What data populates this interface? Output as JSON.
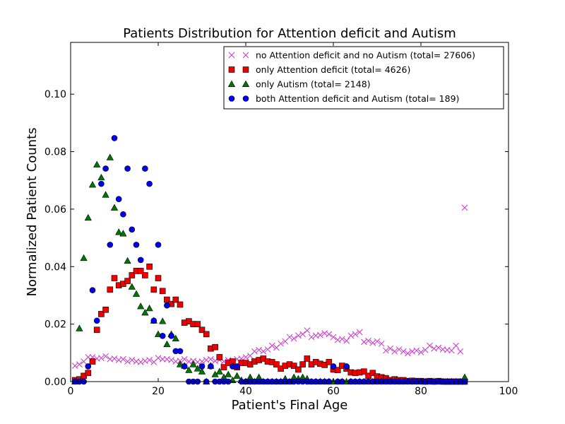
{
  "chart_data": {
    "type": "scatter",
    "title": "Patients Distribution for Attention deficit and Autism",
    "xlabel": "Patient's Final Age",
    "ylabel": "Normalized Patient Counts",
    "xlim": [
      0,
      100
    ],
    "ylim": [
      0,
      0.118
    ],
    "xticks": [
      "0",
      "20",
      "40",
      "60",
      "80",
      "100"
    ],
    "yticks": [
      "0.00",
      "0.02",
      "0.04",
      "0.06",
      "0.08",
      "0.10"
    ],
    "grid": false,
    "legend_position": "top-right",
    "series": [
      {
        "name": "no Attention deficit and no Autism (total= 27606)",
        "marker": "x",
        "color": "#cc33cc",
        "x": [
          1,
          2,
          3,
          4,
          5,
          6,
          7,
          8,
          9,
          10,
          11,
          12,
          13,
          14,
          15,
          16,
          17,
          18,
          19,
          20,
          21,
          22,
          23,
          24,
          25,
          26,
          27,
          28,
          29,
          30,
          31,
          32,
          33,
          34,
          35,
          36,
          37,
          38,
          39,
          40,
          41,
          42,
          43,
          44,
          45,
          46,
          47,
          48,
          49,
          50,
          51,
          52,
          53,
          54,
          55,
          56,
          57,
          58,
          59,
          60,
          61,
          62,
          63,
          64,
          65,
          66,
          67,
          68,
          69,
          70,
          71,
          72,
          73,
          74,
          75,
          76,
          77,
          78,
          79,
          80,
          81,
          82,
          83,
          84,
          85,
          86,
          87,
          88,
          89,
          90
        ],
        "y": [
          0.0055,
          0.006,
          0.007,
          0.0085,
          0.0085,
          0.008,
          0.0082,
          0.0088,
          0.0078,
          0.008,
          0.0075,
          0.0078,
          0.007,
          0.0075,
          0.007,
          0.0068,
          0.0072,
          0.0075,
          0.0068,
          0.0082,
          0.0078,
          0.0078,
          0.0075,
          0.007,
          0.0072,
          0.0078,
          0.007,
          0.0072,
          0.0068,
          0.007,
          0.0075,
          0.0078,
          0.0072,
          0.0075,
          0.007,
          0.0075,
          0.0072,
          0.0078,
          0.008,
          0.0085,
          0.009,
          0.0105,
          0.011,
          0.0105,
          0.0112,
          0.0125,
          0.0118,
          0.0132,
          0.014,
          0.0155,
          0.015,
          0.016,
          0.0165,
          0.0178,
          0.0155,
          0.016,
          0.0162,
          0.0168,
          0.0165,
          0.0155,
          0.0145,
          0.0148,
          0.0142,
          0.016,
          0.0165,
          0.0172,
          0.0138,
          0.0142,
          0.0135,
          0.014,
          0.0132,
          0.0108,
          0.0115,
          0.0105,
          0.0112,
          0.0105,
          0.0098,
          0.0105,
          0.0108,
          0.0102,
          0.011,
          0.0125,
          0.0115,
          0.0118,
          0.0112,
          0.011,
          0.0108,
          0.0125,
          0.0105,
          0.0605
        ]
      },
      {
        "name": "only Attention deficit (total= 4626)",
        "marker": "s",
        "color": "#ee0000",
        "x": [
          1,
          2,
          3,
          4,
          5,
          6,
          7,
          8,
          9,
          10,
          11,
          12,
          13,
          14,
          15,
          16,
          17,
          18,
          19,
          20,
          21,
          22,
          23,
          24,
          25,
          26,
          27,
          28,
          29,
          30,
          31,
          32,
          33,
          34,
          35,
          36,
          37,
          38,
          39,
          40,
          41,
          42,
          43,
          44,
          45,
          46,
          47,
          48,
          49,
          50,
          51,
          52,
          53,
          54,
          55,
          56,
          57,
          58,
          59,
          60,
          61,
          62,
          63,
          64,
          65,
          66,
          67,
          68,
          69,
          70,
          71,
          72,
          73,
          74,
          75,
          76,
          77,
          78,
          79,
          80,
          81,
          82,
          83,
          84,
          85,
          86,
          87,
          88,
          89,
          90
        ],
        "y": [
          0.0005,
          0.0008,
          0.002,
          0.003,
          0.007,
          0.018,
          0.0235,
          0.025,
          0.032,
          0.036,
          0.0335,
          0.034,
          0.035,
          0.037,
          0.0385,
          0.0385,
          0.037,
          0.04,
          0.032,
          0.036,
          0.0315,
          0.0285,
          0.027,
          0.0285,
          0.0268,
          0.0205,
          0.021,
          0.02,
          0.02,
          0.018,
          0.0165,
          0.0115,
          0.012,
          0.0085,
          0.005,
          0.0065,
          0.007,
          0.005,
          0.0065,
          0.0065,
          0.006,
          0.007,
          0.0075,
          0.008,
          0.007,
          0.0068,
          0.006,
          0.0045,
          0.0055,
          0.006,
          0.0055,
          0.0042,
          0.006,
          0.008,
          0.006,
          0.0068,
          0.0062,
          0.0058,
          0.0068,
          0.0042,
          0.004,
          0.0055,
          0.0045,
          0.0032,
          0.003,
          0.0032,
          0.0035,
          0.002,
          0.003,
          0.0018,
          0.0015,
          0.0012,
          0.0005,
          0.0008,
          0.0005,
          0.0005,
          0.0002,
          0.0003,
          0.0002,
          0.0002,
          0.0,
          0.0002,
          0.0,
          0.0002,
          0.0,
          0.0,
          0.0,
          0.0,
          0.0,
          0.0
        ]
      },
      {
        "name": "only Autism (total= 2148)",
        "marker": "^",
        "color": "#007700",
        "x": [
          1,
          2,
          3,
          4,
          5,
          6,
          7,
          8,
          9,
          10,
          11,
          12,
          13,
          14,
          15,
          16,
          17,
          18,
          19,
          20,
          21,
          22,
          23,
          24,
          25,
          26,
          27,
          28,
          29,
          30,
          31,
          32,
          33,
          34,
          35,
          36,
          37,
          38,
          39,
          40,
          41,
          42,
          43,
          44,
          45,
          46,
          47,
          48,
          49,
          50,
          51,
          52,
          53,
          54,
          55,
          56,
          57,
          58,
          59,
          60,
          61,
          62,
          63,
          64,
          65,
          66,
          67,
          68,
          69,
          70,
          71,
          72,
          73,
          74,
          75,
          76,
          77,
          78,
          79,
          80,
          81,
          82,
          83,
          84,
          85,
          86,
          87,
          88,
          89,
          90
        ],
        "y": [
          0.0,
          0.0185,
          0.043,
          0.057,
          0.0685,
          0.0755,
          0.071,
          0.065,
          0.078,
          0.0605,
          0.052,
          0.0515,
          0.042,
          0.033,
          0.0305,
          0.0262,
          0.024,
          0.0255,
          0.0212,
          0.0165,
          0.021,
          0.013,
          0.0165,
          0.015,
          0.006,
          0.0055,
          0.004,
          0.006,
          0.0045,
          0.0035,
          0.0,
          0.0055,
          0.0025,
          0.0035,
          0.0015,
          0.0025,
          0.0005,
          0.002,
          0.0005,
          0.0,
          0.0015,
          0.0,
          0.0015,
          0.0,
          0.0,
          0.0,
          0.0,
          0.0,
          0.001,
          0.0,
          0.0015,
          0.001,
          0.0015,
          0.001,
          0.0,
          0.0,
          0.0,
          0.0,
          0.0,
          0.0,
          0.0,
          0.0,
          0.0,
          0.0,
          0.0,
          0.0,
          0.0,
          0.0,
          0.0,
          0.0,
          0.0,
          0.0,
          0.0,
          0.0,
          0.0,
          0.0,
          0.0,
          0.0,
          0.0,
          0.0,
          0.0,
          0.0,
          0.0,
          0.0,
          0.0,
          0.0,
          0.0,
          0.0,
          0.0,
          0.0015
        ]
      },
      {
        "name": "both Attention deficit and Autism (total= 189)",
        "marker": "o",
        "color": "#0000ee",
        "x": [
          1,
          2,
          3,
          4,
          5,
          6,
          7,
          8,
          9,
          10,
          11,
          12,
          13,
          14,
          15,
          16,
          17,
          18,
          19,
          20,
          21,
          22,
          23,
          24,
          25,
          26,
          27,
          28,
          29,
          30,
          31,
          32,
          33,
          34,
          35,
          36,
          37,
          38,
          39,
          40,
          41,
          42,
          43,
          44,
          45,
          46,
          47,
          48,
          49,
          50,
          51,
          52,
          53,
          54,
          55,
          56,
          57,
          58,
          59,
          60,
          61,
          62,
          63,
          64,
          65,
          66,
          67,
          68,
          69,
          70,
          71,
          72,
          73,
          74,
          75,
          76,
          77,
          78,
          79,
          80,
          81,
          82,
          83,
          84,
          85,
          86,
          87,
          88,
          89,
          90
        ],
        "y": [
          0.0,
          0.0,
          0.0,
          0.0053,
          0.0318,
          0.0212,
          0.0688,
          0.0741,
          0.0476,
          0.0847,
          0.0635,
          0.0582,
          0.0741,
          0.0529,
          0.0476,
          0.0423,
          0.0741,
          0.0688,
          0.0212,
          0.0476,
          0.0159,
          0.0265,
          0.0159,
          0.0106,
          0.0106,
          0.0053,
          0.0,
          0.0,
          0.0,
          0.0053,
          0.0,
          0.0053,
          0.0,
          0.0,
          0.0,
          0.0,
          0.0053,
          0.0053,
          0.0,
          0.0,
          0.0,
          0.0,
          0.0,
          0.0,
          0.0,
          0.0,
          0.0,
          0.0,
          0.0,
          0.0,
          0.0,
          0.0,
          0.0,
          0.0,
          0.0,
          0.0,
          0.0,
          0.0,
          0.0,
          0.0053,
          0.0,
          0.0,
          0.0053,
          0.0,
          0.0,
          0.0,
          0.0,
          0.0,
          0.0,
          0.0,
          0.0,
          0.0,
          0.0,
          0.0,
          0.0,
          0.0,
          0.0,
          0.0,
          0.0,
          0.0,
          0.0,
          0.0,
          0.0,
          0.0,
          0.0,
          0.0,
          0.0,
          0.0,
          0.0,
          0.0
        ]
      }
    ]
  }
}
